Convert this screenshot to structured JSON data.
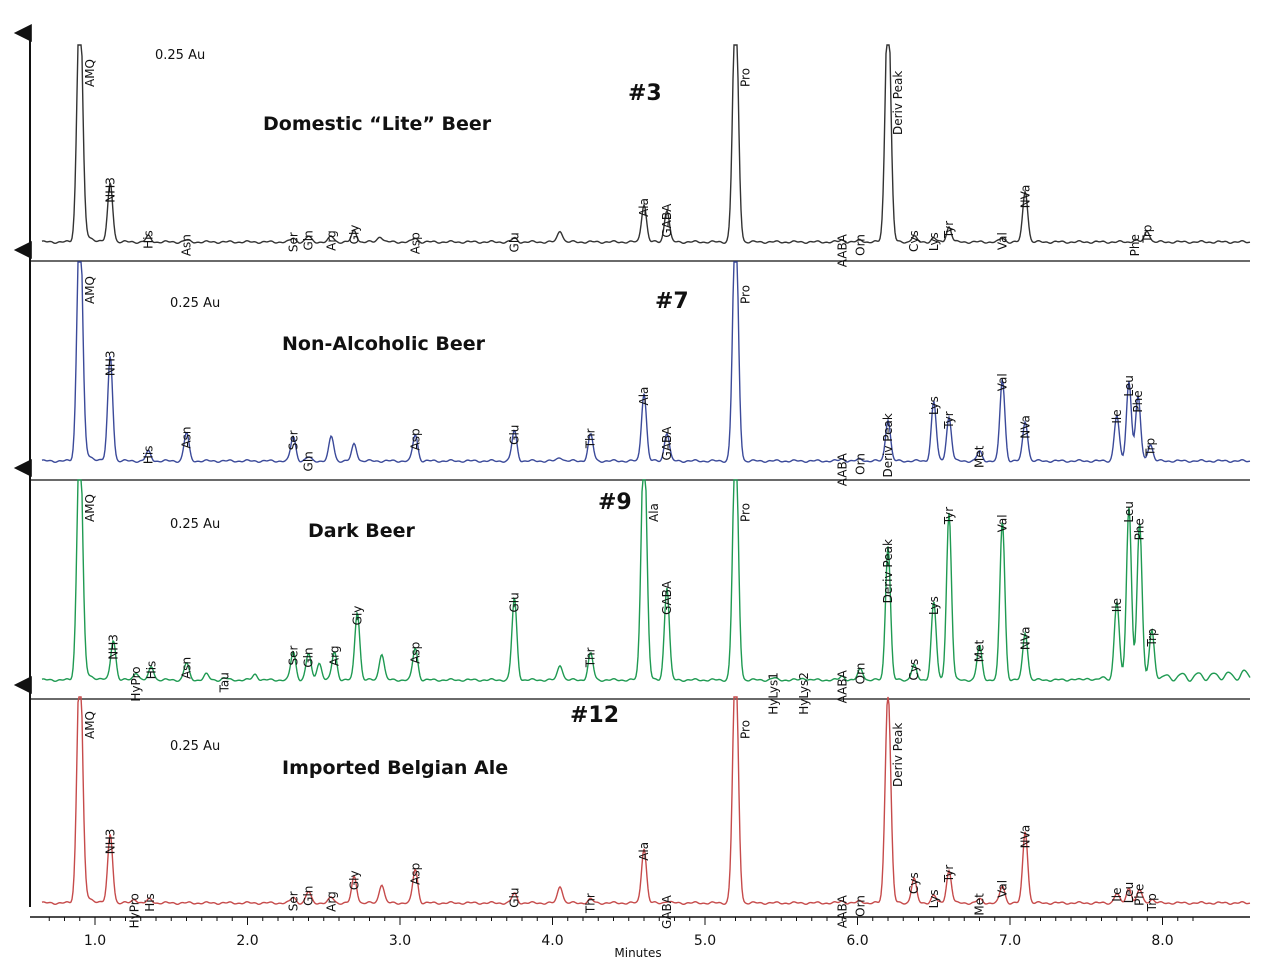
{
  "chart_data": {
    "type": "line",
    "xlabel": "Minutes",
    "xlim": [
      0.65,
      8.2
    ],
    "x_ticks": [
      "1.0",
      "2.0",
      "3.0",
      "4.0",
      "5.0",
      "6.0",
      "7.0",
      "8.0"
    ],
    "x_tick_values": [
      1,
      2,
      3,
      4,
      5,
      6,
      7,
      8
    ],
    "panels": [
      {
        "run": "#3",
        "title": "Domestic “Lite” Beer",
        "scale": "0.25 Au",
        "color": "#333333",
        "peaks": [
          {
            "name": "AMQ",
            "x": 0.9,
            "h": 1.3,
            "labeled": true
          },
          {
            "name": "NH3",
            "x": 1.1,
            "h": 0.31
          },
          {
            "name": "His",
            "x": 1.35,
            "h": 0.03
          },
          {
            "name": "Asn",
            "x": 1.6,
            "h": 0.01
          },
          {
            "name": "Ser",
            "x": 2.3,
            "h": 0.02
          },
          {
            "name": "Gln",
            "x": 2.4,
            "h": 0.03
          },
          {
            "name": "Arg",
            "x": 2.55,
            "h": 0.03
          },
          {
            "name": "Gly",
            "x": 2.7,
            "h": 0.06
          },
          {
            "name": "",
            "x": 2.87,
            "h": 0.03
          },
          {
            "name": "Asp",
            "x": 3.1,
            "h": 0.02
          },
          {
            "name": "Glu",
            "x": 3.75,
            "h": 0.02
          },
          {
            "name": "",
            "x": 4.05,
            "h": 0.06
          },
          {
            "name": "Ala",
            "x": 4.6,
            "h": 0.2
          },
          {
            "name": "GABA",
            "x": 4.75,
            "h": 0.17
          },
          {
            "name": "Pro",
            "x": 5.2,
            "h": 1.3
          },
          {
            "name": "AABA",
            "x": 5.9,
            "h": 0.01
          },
          {
            "name": "Orn",
            "x": 6.02,
            "h": 0.01
          },
          {
            "name": "Deriv Peak",
            "x": 6.2,
            "h": 1.3
          },
          {
            "name": "Cys",
            "x": 6.37,
            "h": 0.03
          },
          {
            "name": "Lys",
            "x": 6.5,
            "h": 0.02
          },
          {
            "name": "Tyr",
            "x": 6.6,
            "h": 0.08
          },
          {
            "name": "Val",
            "x": 6.95,
            "h": 0.02
          },
          {
            "name": "NVa",
            "x": 7.1,
            "h": 0.27
          },
          {
            "name": "Phe",
            "x": 7.82,
            "h": 0.01
          },
          {
            "name": "Trp",
            "x": 7.9,
            "h": 0.06
          }
        ]
      },
      {
        "run": "#7",
        "title": "Non-Alcoholic Beer",
        "scale": "0.25 Au",
        "color": "#3b4a9a",
        "peaks": [
          {
            "name": "AMQ",
            "x": 0.9,
            "h": 1.3
          },
          {
            "name": "NH3",
            "x": 1.1,
            "h": 0.55
          },
          {
            "name": "His",
            "x": 1.35,
            "h": 0.05
          },
          {
            "name": "Asn",
            "x": 1.6,
            "h": 0.15
          },
          {
            "name": "Ser",
            "x": 2.3,
            "h": 0.13
          },
          {
            "name": "Gln",
            "x": 2.4,
            "h": 0.02
          },
          {
            "name": "",
            "x": 2.55,
            "h": 0.13
          },
          {
            "name": "",
            "x": 2.7,
            "h": 0.09
          },
          {
            "name": "Asp",
            "x": 3.1,
            "h": 0.14
          },
          {
            "name": "Glu",
            "x": 3.75,
            "h": 0.16
          },
          {
            "name": "",
            "x": 4.05,
            "h": 0.02
          },
          {
            "name": "Thr",
            "x": 4.25,
            "h": 0.14
          },
          {
            "name": "Ala",
            "x": 4.6,
            "h": 0.36
          },
          {
            "name": "GABA",
            "x": 4.75,
            "h": 0.15
          },
          {
            "name": "Pro",
            "x": 5.2,
            "h": 1.3
          },
          {
            "name": "AABA",
            "x": 5.9,
            "h": 0.01
          },
          {
            "name": "Orn",
            "x": 6.02,
            "h": 0.01
          },
          {
            "name": "Deriv Peak",
            "x": 6.2,
            "h": 0.22
          },
          {
            "name": "Lys",
            "x": 6.5,
            "h": 0.31
          },
          {
            "name": "Tyr",
            "x": 6.6,
            "h": 0.23
          },
          {
            "name": "Met",
            "x": 6.8,
            "h": 0.05
          },
          {
            "name": "Val",
            "x": 6.95,
            "h": 0.43
          },
          {
            "name": "NVa",
            "x": 7.1,
            "h": 0.21
          },
          {
            "name": "Ile",
            "x": 7.7,
            "h": 0.24
          },
          {
            "name": "Leu",
            "x": 7.78,
            "h": 0.42
          },
          {
            "name": "Phe",
            "x": 7.84,
            "h": 0.34
          },
          {
            "name": "Trp",
            "x": 7.92,
            "h": 0.09
          }
        ]
      },
      {
        "run": "#9",
        "title": "Dark Beer",
        "scale": "0.25 Au",
        "color": "#1f9a52",
        "peaks": [
          {
            "name": "AMQ",
            "x": 0.9,
            "h": 1.3
          },
          {
            "name": "NH3",
            "x": 1.12,
            "h": 0.21
          },
          {
            "name": "HyPro",
            "x": 1.27,
            "h": 0.04
          },
          {
            "name": "His",
            "x": 1.37,
            "h": 0.07
          },
          {
            "name": "Asn",
            "x": 1.6,
            "h": 0.09
          },
          {
            "name": "",
            "x": 1.73,
            "h": 0.03
          },
          {
            "name": "Tau",
            "x": 1.85,
            "h": 0.01
          },
          {
            "name": "",
            "x": 2.05,
            "h": 0.03
          },
          {
            "name": "Ser",
            "x": 2.3,
            "h": 0.15
          },
          {
            "name": "Gln",
            "x": 2.4,
            "h": 0.14
          },
          {
            "name": "",
            "x": 2.47,
            "h": 0.09
          },
          {
            "name": "Arg",
            "x": 2.57,
            "h": 0.15
          },
          {
            "name": "Gly",
            "x": 2.72,
            "h": 0.36
          },
          {
            "name": "",
            "x": 2.88,
            "h": 0.14
          },
          {
            "name": "Asp",
            "x": 3.1,
            "h": 0.17
          },
          {
            "name": "Glu",
            "x": 3.75,
            "h": 0.43
          },
          {
            "name": "",
            "x": 4.05,
            "h": 0.08
          },
          {
            "name": "Thr",
            "x": 4.25,
            "h": 0.14
          },
          {
            "name": "Ala",
            "x": 4.6,
            "h": 1.3
          },
          {
            "name": "GABA",
            "x": 4.75,
            "h": 0.49
          },
          {
            "name": "Pro",
            "x": 5.2,
            "h": 1.3
          },
          {
            "name": "HyLys1",
            "x": 5.45,
            "h": 0.01
          },
          {
            "name": "HyLys2",
            "x": 5.65,
            "h": 0.01
          },
          {
            "name": "AABA",
            "x": 5.9,
            "h": 0.02
          },
          {
            "name": "Orn",
            "x": 6.02,
            "h": 0.06
          },
          {
            "name": "Deriv Peak",
            "x": 6.2,
            "h": 0.71
          },
          {
            "name": "Cys",
            "x": 6.37,
            "h": 0.08
          },
          {
            "name": "Lys",
            "x": 6.5,
            "h": 0.41
          },
          {
            "name": "Tyr",
            "x": 6.6,
            "h": 0.88
          },
          {
            "name": "Met",
            "x": 6.8,
            "h": 0.18
          },
          {
            "name": "Val",
            "x": 6.95,
            "h": 0.84
          },
          {
            "name": "NVa",
            "x": 7.1,
            "h": 0.25
          },
          {
            "name": "Ile",
            "x": 7.7,
            "h": 0.4
          },
          {
            "name": "Leu",
            "x": 7.78,
            "h": 0.91
          },
          {
            "name": "Phe",
            "x": 7.85,
            "h": 0.82
          },
          {
            "name": "Trp",
            "x": 7.93,
            "h": 0.24
          }
        ]
      },
      {
        "run": "#12",
        "title": "Imported Belgian Ale",
        "scale": "0.25 Au",
        "color": "#c64b4b",
        "peaks": [
          {
            "name": "AMQ",
            "x": 0.9,
            "h": 1.3
          },
          {
            "name": "NH3",
            "x": 1.1,
            "h": 0.36
          },
          {
            "name": "HyPro",
            "x": 1.26,
            "h": 0.02
          },
          {
            "name": "His",
            "x": 1.36,
            "h": 0.02
          },
          {
            "name": "Ser",
            "x": 2.3,
            "h": 0.03
          },
          {
            "name": "Gln",
            "x": 2.4,
            "h": 0.06
          },
          {
            "name": "Arg",
            "x": 2.55,
            "h": 0.03
          },
          {
            "name": "Gly",
            "x": 2.7,
            "h": 0.14
          },
          {
            "name": "",
            "x": 2.88,
            "h": 0.1
          },
          {
            "name": "Asp",
            "x": 3.1,
            "h": 0.18
          },
          {
            "name": "Glu",
            "x": 3.75,
            "h": 0.05
          },
          {
            "name": "",
            "x": 4.05,
            "h": 0.09
          },
          {
            "name": "Thr",
            "x": 4.25,
            "h": 0.02
          },
          {
            "name": "Ala",
            "x": 4.6,
            "h": 0.29
          },
          {
            "name": "GABA",
            "x": 4.75,
            "h": 0.01
          },
          {
            "name": "Pro",
            "x": 5.2,
            "h": 1.3
          },
          {
            "name": "AABA",
            "x": 5.9,
            "h": 0.01
          },
          {
            "name": "Orn",
            "x": 6.02,
            "h": 0.01
          },
          {
            "name": "Deriv Peak",
            "x": 6.2,
            "h": 1.12
          },
          {
            "name": "Cys",
            "x": 6.37,
            "h": 0.13
          },
          {
            "name": "Lys",
            "x": 6.5,
            "h": 0.04
          },
          {
            "name": "Tyr",
            "x": 6.6,
            "h": 0.17
          },
          {
            "name": "Met",
            "x": 6.8,
            "h": 0.02
          },
          {
            "name": "Val",
            "x": 6.95,
            "h": 0.09
          },
          {
            "name": "NVa",
            "x": 7.1,
            "h": 0.38
          },
          {
            "name": "Ile",
            "x": 7.7,
            "h": 0.05
          },
          {
            "name": "Leu",
            "x": 7.78,
            "h": 0.08
          },
          {
            "name": "Phe",
            "x": 7.85,
            "h": 0.07
          },
          {
            "name": "Trp",
            "x": 7.93,
            "h": 0.02
          }
        ]
      }
    ]
  }
}
